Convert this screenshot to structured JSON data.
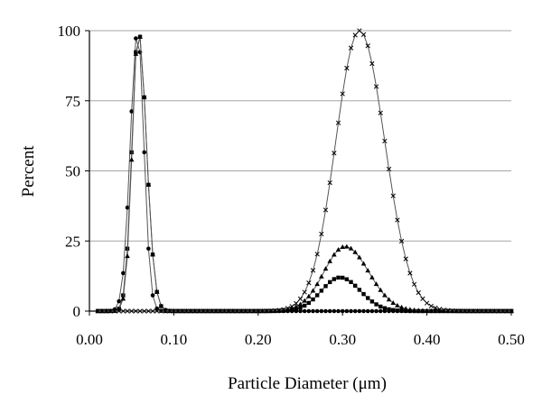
{
  "chart_data": {
    "type": "line",
    "title": "",
    "xlabel": "Particle Diameter (μm)",
    "ylabel": "Percent",
    "xlim": [
      0.0,
      0.5
    ],
    "ylim": [
      0,
      100
    ],
    "x_ticks": [
      "0.00",
      "0.10",
      "0.20",
      "0.30",
      "0.40",
      "0.50"
    ],
    "y_ticks": [
      "0",
      "25",
      "50",
      "75",
      "100"
    ],
    "grid": "horizontal",
    "legend": "none",
    "x_step": 0.005,
    "x_start": 0.01,
    "x_end": 0.5,
    "series": [
      {
        "marker": "circle",
        "peaks": [
          {
            "center": 0.057,
            "height": 100,
            "sigma_left": 0.0085,
            "sigma_right": 0.0075
          }
        ]
      },
      {
        "marker": "square",
        "peaks": [
          {
            "center": 0.058,
            "height": 100,
            "sigma_left": 0.0075,
            "sigma_right": 0.0095
          },
          {
            "center": 0.297,
            "height": 12,
            "sigma_left": 0.022,
            "sigma_right": 0.024
          }
        ]
      },
      {
        "marker": "triangle",
        "peaks": [
          {
            "center": 0.058,
            "height": 100,
            "sigma_left": 0.0072,
            "sigma_right": 0.0095
          },
          {
            "center": 0.303,
            "height": 23,
            "sigma_left": 0.025,
            "sigma_right": 0.028
          }
        ]
      },
      {
        "marker": "x",
        "peaks": [
          {
            "center": 0.32,
            "height": 100,
            "sigma_left": 0.028,
            "sigma_right": 0.03
          }
        ]
      }
    ]
  }
}
